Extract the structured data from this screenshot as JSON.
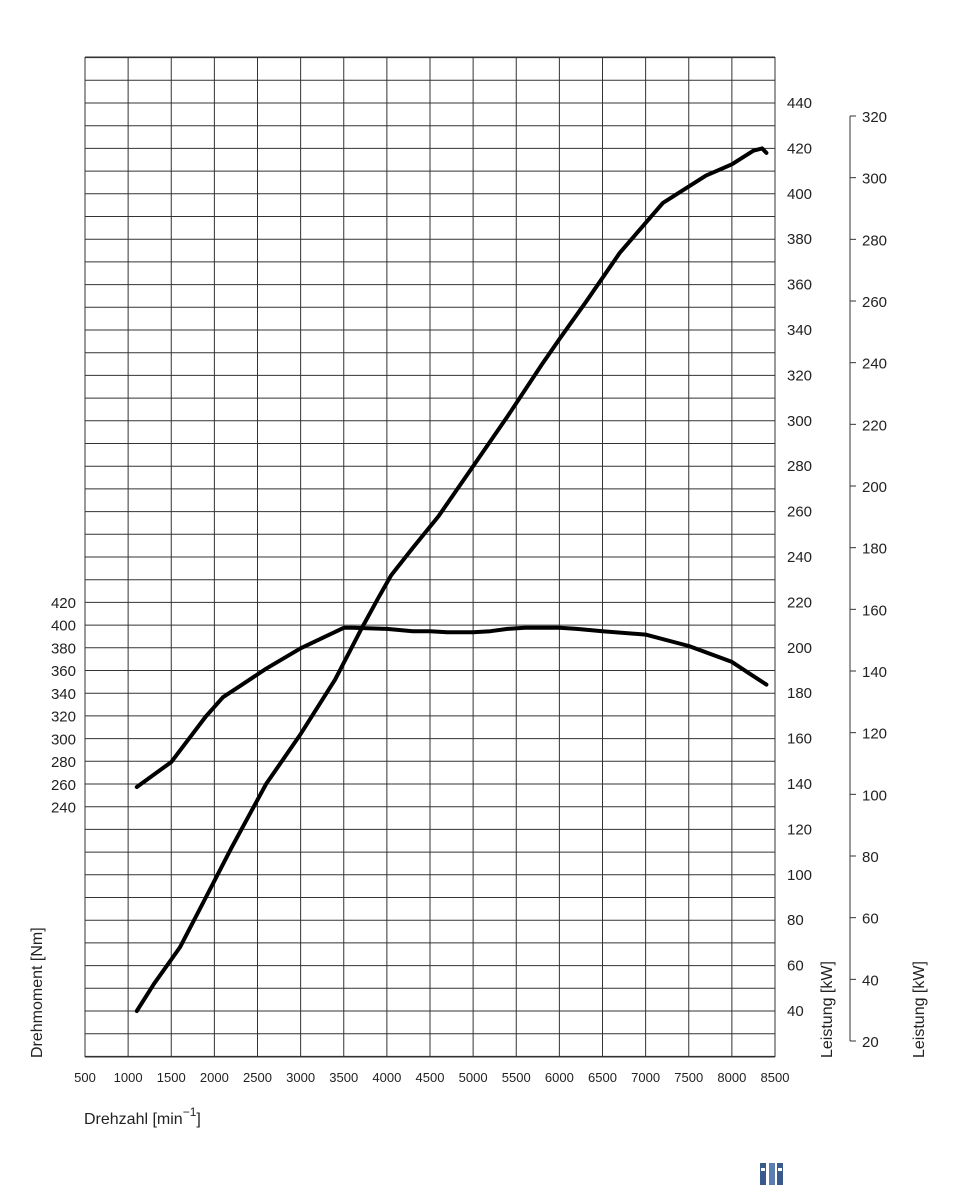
{
  "chart_data": {
    "type": "line",
    "xlabel": "Drehzahl [min",
    "xlabel_sup": "−1",
    "xlabel_end": "]",
    "x_ticks": [
      500,
      1000,
      1500,
      2000,
      2500,
      3000,
      3500,
      4000,
      4500,
      5000,
      5500,
      6000,
      6500,
      7000,
      7500,
      8000,
      8500
    ],
    "xlim": [
      500,
      8500
    ],
    "grid": true,
    "axes": {
      "torque": {
        "label": "Drehmoment [Nm]",
        "ticks": [
          240,
          260,
          280,
          300,
          320,
          340,
          360,
          380,
          400,
          420
        ],
        "position": "left"
      },
      "power_inner": {
        "label": "Leistung [kW]",
        "ticks": [
          40,
          60,
          80,
          100,
          120,
          140,
          160,
          180,
          200,
          220,
          240,
          260,
          280,
          300,
          320,
          340,
          360,
          380,
          400,
          420,
          440
        ],
        "position": "right-inner"
      },
      "power_outer": {
        "label": "Leistung [kW]",
        "ticks": [
          20,
          40,
          60,
          80,
          100,
          120,
          140,
          160,
          180,
          200,
          220,
          240,
          260,
          280,
          300,
          320
        ],
        "position": "right-outer"
      }
    },
    "series": [
      {
        "axis": "torque",
        "x": [
          1100,
          1500,
          1700,
          1900,
          2100,
          2300,
          2600,
          3000,
          3500,
          3600,
          4000,
          4300,
          4500,
          4700,
          5000,
          5200,
          5400,
          5600,
          6000,
          6200,
          6500,
          7000,
          7500,
          8000,
          8200,
          8400
        ],
        "y": [
          258,
          280,
          300,
          320,
          337,
          347,
          362,
          380,
          398,
          398,
          397,
          395,
          395,
          394,
          394,
          395,
          397,
          398,
          398,
          397,
          395,
          392,
          382,
          368,
          358,
          348
        ]
      },
      {
        "axis": "power_inner",
        "x": [
          1100,
          1300,
          1600,
          1900,
          2200,
          2600,
          3000,
          3400,
          3700,
          3900,
          4050,
          4300,
          4600,
          5000,
          5400,
          5800,
          6000,
          6300,
          6700,
          7200,
          7700,
          8000,
          8250,
          8350,
          8400
        ],
        "y": [
          40,
          52,
          68,
          90,
          112,
          140,
          162,
          186,
          208,
          222,
          232,
          244,
          258,
          280,
          302,
          325,
          336,
          352,
          374,
          396,
          408,
          413,
          419,
          420,
          418
        ]
      }
    ]
  },
  "icon": {
    "name": "bars-logo-icon"
  }
}
